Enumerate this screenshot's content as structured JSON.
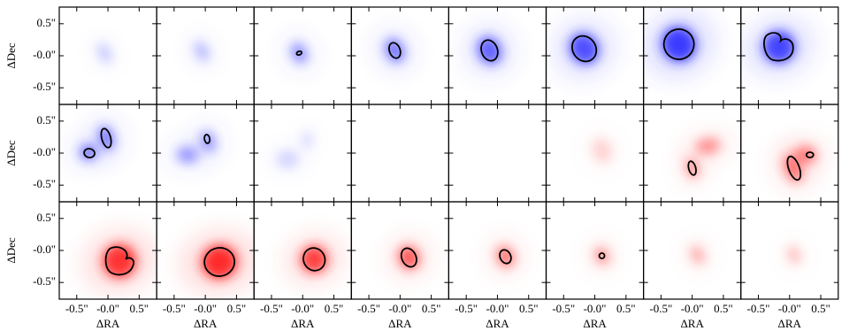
{
  "chart_data": {
    "type": "heatmap",
    "xlabel": "ΔRA",
    "ylabel": "ΔDec",
    "xlim": [
      -0.78,
      0.78
    ],
    "ylim": [
      -0.76,
      0.76
    ],
    "xticks": [
      {
        "value": -0.5,
        "label": "-0.5\""
      },
      {
        "value": 0,
        "label": "-0.0\""
      },
      {
        "value": 0.5,
        "label": "0.5\""
      }
    ],
    "yticks": [
      {
        "value": 0.5,
        "label": "0.5\""
      },
      {
        "value": 0,
        "label": "-0.0\""
      },
      {
        "value": -0.5,
        "label": "-0.5\""
      }
    ],
    "colormap": {
      "blue": "#2a2aff",
      "red": "#ff2424"
    }
  }
}
